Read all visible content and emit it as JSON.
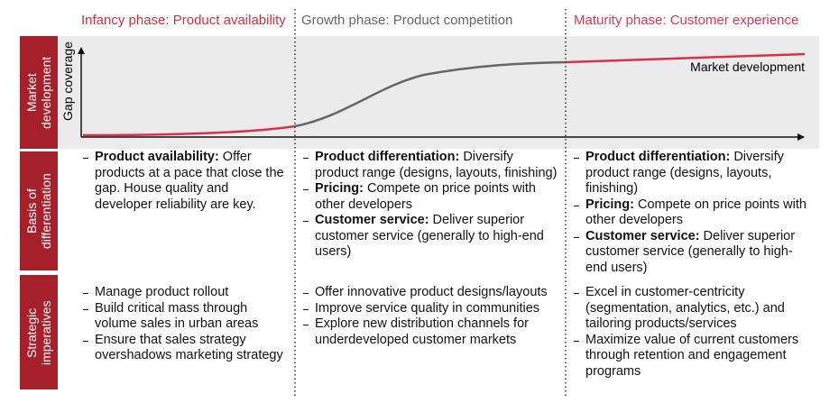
{
  "phases": [
    "Infancy phase: Product availability",
    "Growth phase: Product competition",
    "Maturity phase: Customer experience"
  ],
  "row_labels": [
    "Market development",
    "Basis of differentiation",
    "Strategic imperatives"
  ],
  "chart": {
    "y_axis_label": "Gap coverage",
    "curve_label": "Market development"
  },
  "differentiation": [
    [
      {
        "bold": "Product availability:",
        "text": "Offer products at a pace that close the gap. House quality and developer reliability are key."
      }
    ],
    [
      {
        "bold": "Product differentiation:",
        "text": "Diversify product range (designs, layouts, finishing)"
      },
      {
        "bold": "Pricing:",
        "text": "Compete on price points with other developers"
      },
      {
        "bold": "Customer service:",
        "text": "Deliver superior customer service (generally to high-end users)"
      }
    ],
    [
      {
        "bold": "Product differentiation:",
        "text": "Diversify product range (designs, layouts, finishing)"
      },
      {
        "bold": "Pricing:",
        "text": "Compete on price points with other developers"
      },
      {
        "bold": "Customer service:",
        "text": "Deliver superior customer service (generally to high-end users)"
      }
    ]
  ],
  "imperatives": [
    [
      "Manage product rollout",
      "Build critical mass through volume sales in urban areas",
      "Ensure that sales strategy overshadows marketing strategy"
    ],
    [
      "Offer innovative product designs/layouts",
      "Improve service quality in communities",
      "Explore new distribution channels for underdeveloped customer markets"
    ],
    [
      "Excel in customer-centricity (segmentation, analytics, etc.) and tailoring products/services",
      "Maximize value of current customers through retention and engagement programs"
    ]
  ]
}
